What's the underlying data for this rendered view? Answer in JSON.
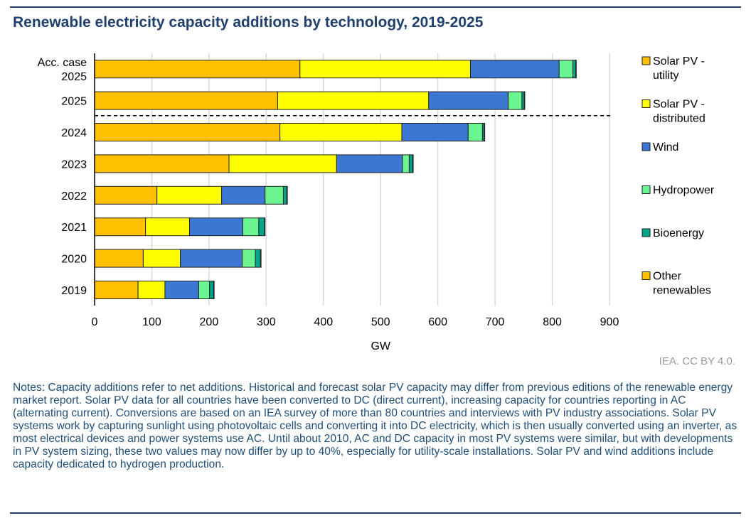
{
  "chart_data": {
    "type": "bar",
    "orientation": "horizontal",
    "stacked": true,
    "title": "Renewable electricity capacity additions by technology, 2019-2025",
    "xlabel": "GW",
    "ylabel": "",
    "xlim": [
      0,
      900
    ],
    "xticks": [
      0,
      100,
      200,
      300,
      400,
      500,
      600,
      700,
      800,
      900
    ],
    "grid": true,
    "legend_position": "right",
    "categories": [
      "Acc. case 2025",
      "2025",
      "2024",
      "2023",
      "2022",
      "2021",
      "2020",
      "2019"
    ],
    "category_lines": [
      [
        "Acc. case",
        "2025"
      ],
      [
        "2025"
      ],
      [
        "2024"
      ],
      [
        "2023"
      ],
      [
        "2022"
      ],
      [
        "2021"
      ],
      [
        "2020"
      ],
      [
        "2019"
      ]
    ],
    "series": [
      {
        "name": "Solar PV - utility",
        "legend_lines": [
          "Solar PV -",
          "utility"
        ],
        "color": "#FFC000",
        "values": [
          359,
          320,
          324,
          235,
          109,
          89,
          85,
          76
        ]
      },
      {
        "name": "Solar PV - distributed",
        "legend_lines": [
          "Solar PV -",
          "distributed"
        ],
        "color": "#FFFF00",
        "values": [
          298,
          264,
          213,
          188,
          113,
          77,
          65,
          47
        ]
      },
      {
        "name": "Wind",
        "legend_lines": [
          "Wind"
        ],
        "color": "#3C78D3",
        "values": [
          155,
          139,
          116,
          115,
          76,
          93,
          108,
          59
        ]
      },
      {
        "name": "Hydropower",
        "legend_lines": [
          "Hydropower"
        ],
        "color": "#6AF590",
        "values": [
          24,
          24,
          25,
          12,
          32,
          28,
          23,
          19
        ]
      },
      {
        "name": "Bioenergy",
        "legend_lines": [
          "Bioenergy"
        ],
        "color": "#00A68C",
        "values": [
          5,
          4,
          3,
          6,
          6,
          10,
          9,
          7
        ]
      },
      {
        "name": "Other renewables",
        "legend_lines": [
          "Other",
          "renewables"
        ],
        "color": "#FFC000",
        "values": [
          1,
          1,
          1,
          1,
          1,
          1,
          1,
          1
        ]
      }
    ],
    "annotations": [
      "dashed separator between 2025 forecast and 2024"
    ]
  },
  "credit": "IEA. CC BY 4.0.",
  "notes": "Notes: Capacity additions refer to net additions. Historical and forecast solar PV capacity may differ from previous editions of the renewable energy market report. Solar PV data for all countries have been converted to DC (direct current), increasing capacity for countries reporting in AC (alternating current). Conversions are based on an IEA survey of more than 80 countries and interviews with PV industry associations. Solar PV systems work by capturing sunlight using photovoltaic cells and converting it into DC electricity, which is then usually converted using an inverter, as most electrical devices and power systems use AC. Until about 2010, AC and DC capacity in most PV systems were similar, but with developments in PV system sizing, these two values may now differ by up to 40%, especially for utility-scale installations. Solar PV and wind additions include capacity dedicated to hydrogen production."
}
